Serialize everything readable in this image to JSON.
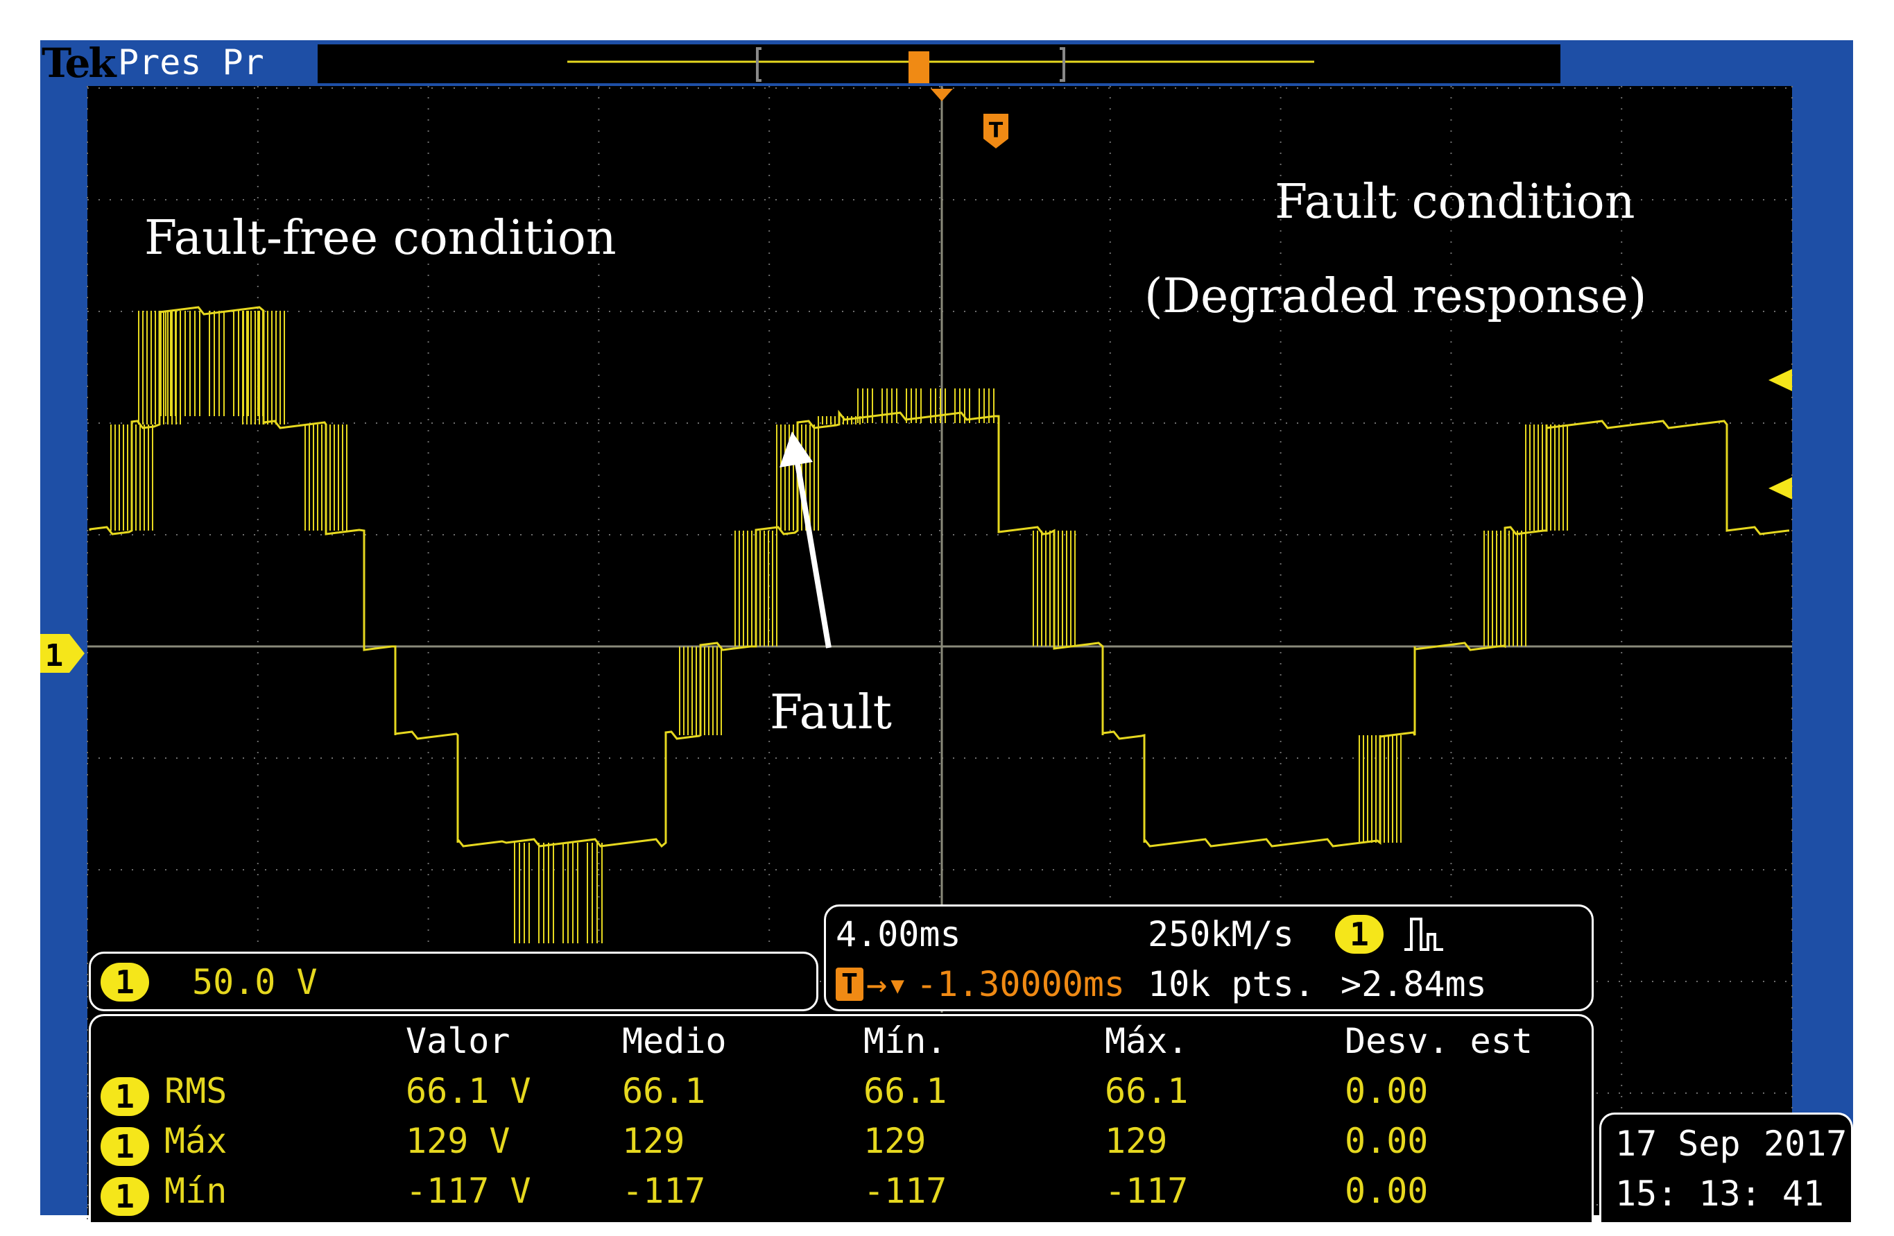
{
  "header": {
    "logo": "Tek",
    "mode": "Pres Pr"
  },
  "channel": {
    "marker": "1",
    "scale": "50.0 V"
  },
  "trigger": {
    "marker": "T",
    "position": "-1.30000ms"
  },
  "annotations": {
    "fault_free": "Fault-free condition",
    "fault_condition": "Fault condition",
    "degraded": "(Degraded response)",
    "fault": "Fault"
  },
  "timebase": {
    "time_div": "4.00ms",
    "sample_rate": "250kM/s",
    "record_length": "10k pts.",
    "trigger_condition": ">2.84ms",
    "trigger_channel": "1"
  },
  "measurements": {
    "headers": [
      "Valor",
      "Medio",
      "Mín.",
      "Máx.",
      "Desv. est"
    ],
    "rows": [
      {
        "channel": "1",
        "name": "RMS",
        "valor": "66.1 V",
        "medio": "66.1",
        "min": "66.1",
        "max": "66.1",
        "std": "0.00"
      },
      {
        "channel": "1",
        "name": "Máx",
        "valor": "129 V",
        "medio": "129",
        "min": "129",
        "max": "129",
        "std": "0.00"
      },
      {
        "channel": "1",
        "name": "Mín",
        "valor": "-117 V",
        "medio": "-117",
        "min": "-117",
        "max": "-117",
        "std": "0.00"
      }
    ]
  },
  "datetime": {
    "date_day": "17 Sep",
    "year": "2017",
    "time": "15: 13: 41"
  },
  "colors": {
    "trace": "#e6d81f",
    "frame": "#1e4fa6",
    "trigger": "#f08a14",
    "screen": "#000000"
  }
}
